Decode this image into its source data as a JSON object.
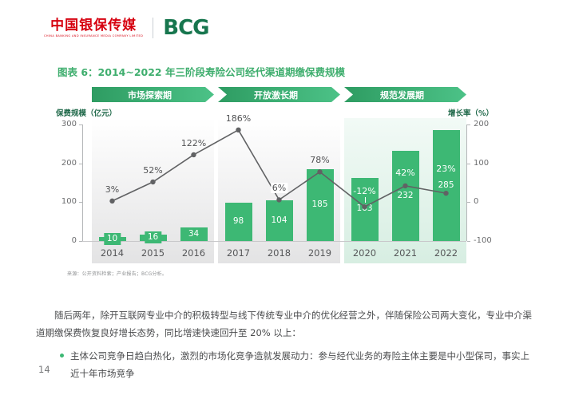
{
  "header": {
    "logo_cn": "中国银保传媒",
    "logo_cn_sub": "CHINA BANKING AND INSURANCE MEDIA COMPANY LIMITED",
    "logo_bcg": "BCG"
  },
  "figure": {
    "title": "图表 6：2014~2022 年三阶段寿险公司经代渠道期缴保费规模",
    "source": "来源：公开资料检索；产业报告；BCG分析。"
  },
  "chart_data": {
    "type": "bar+line",
    "categories": [
      "2014",
      "2015",
      "2016",
      "2017",
      "2018",
      "2019",
      "2020",
      "2021",
      "2022"
    ],
    "series": [
      {
        "name": "保费规模（亿元）",
        "type": "bar",
        "values": [
          10,
          16,
          34,
          98,
          104,
          185,
          163,
          232,
          285
        ]
      },
      {
        "name": "增长率（%）",
        "type": "line",
        "values": [
          3,
          52,
          122,
          186,
          6,
          78,
          -12,
          42,
          23
        ],
        "labels": [
          "3%",
          "52%",
          "122%",
          "186%",
          "6%",
          "78%",
          "-12%",
          "42%",
          "23%"
        ]
      }
    ],
    "phases": [
      {
        "label": "市场探索期",
        "categories": [
          "2014",
          "2015",
          "2016"
        ]
      },
      {
        "label": "开放激长期",
        "categories": [
          "2017",
          "2018",
          "2019"
        ]
      },
      {
        "label": "规范发展期",
        "categories": [
          "2020",
          "2021",
          "2022"
        ]
      }
    ],
    "left_axis": {
      "label": "保费规模（亿元）",
      "range": [
        0,
        300
      ],
      "ticks": [
        300,
        200,
        100,
        0
      ]
    },
    "right_axis": {
      "label": "增长率（%）",
      "range": [
        -100,
        200
      ],
      "ticks": [
        200,
        100,
        0,
        -100
      ]
    },
    "legend_position": "none",
    "grid": false,
    "colors": {
      "bar": "#3db874",
      "banner_gradient_start": "#2e9c62",
      "banner_gradient_end": "#4cc287",
      "line": "#616264",
      "title_green": "#3fae6e",
      "logo_red": "#d6000f",
      "bcg_green": "#17764e",
      "panel_green": "#d7eee2"
    }
  },
  "body": {
    "paragraph": "随后两年，除开互联网专业中介的积极转型与线下传统专业中介的优化经营之外，伴随保险公司两大变化，专业中介渠道期缴保费恢复良好增长态势，同比增速快速回升至 20% 以上：",
    "bullet": "主体公司竞争日趋白热化，激烈的市场化竞争造就发展动力：参与经代业务的寿险主体主要是中小型保司，事实上近十年市场竞争"
  },
  "footer": {
    "page_number": "14"
  }
}
